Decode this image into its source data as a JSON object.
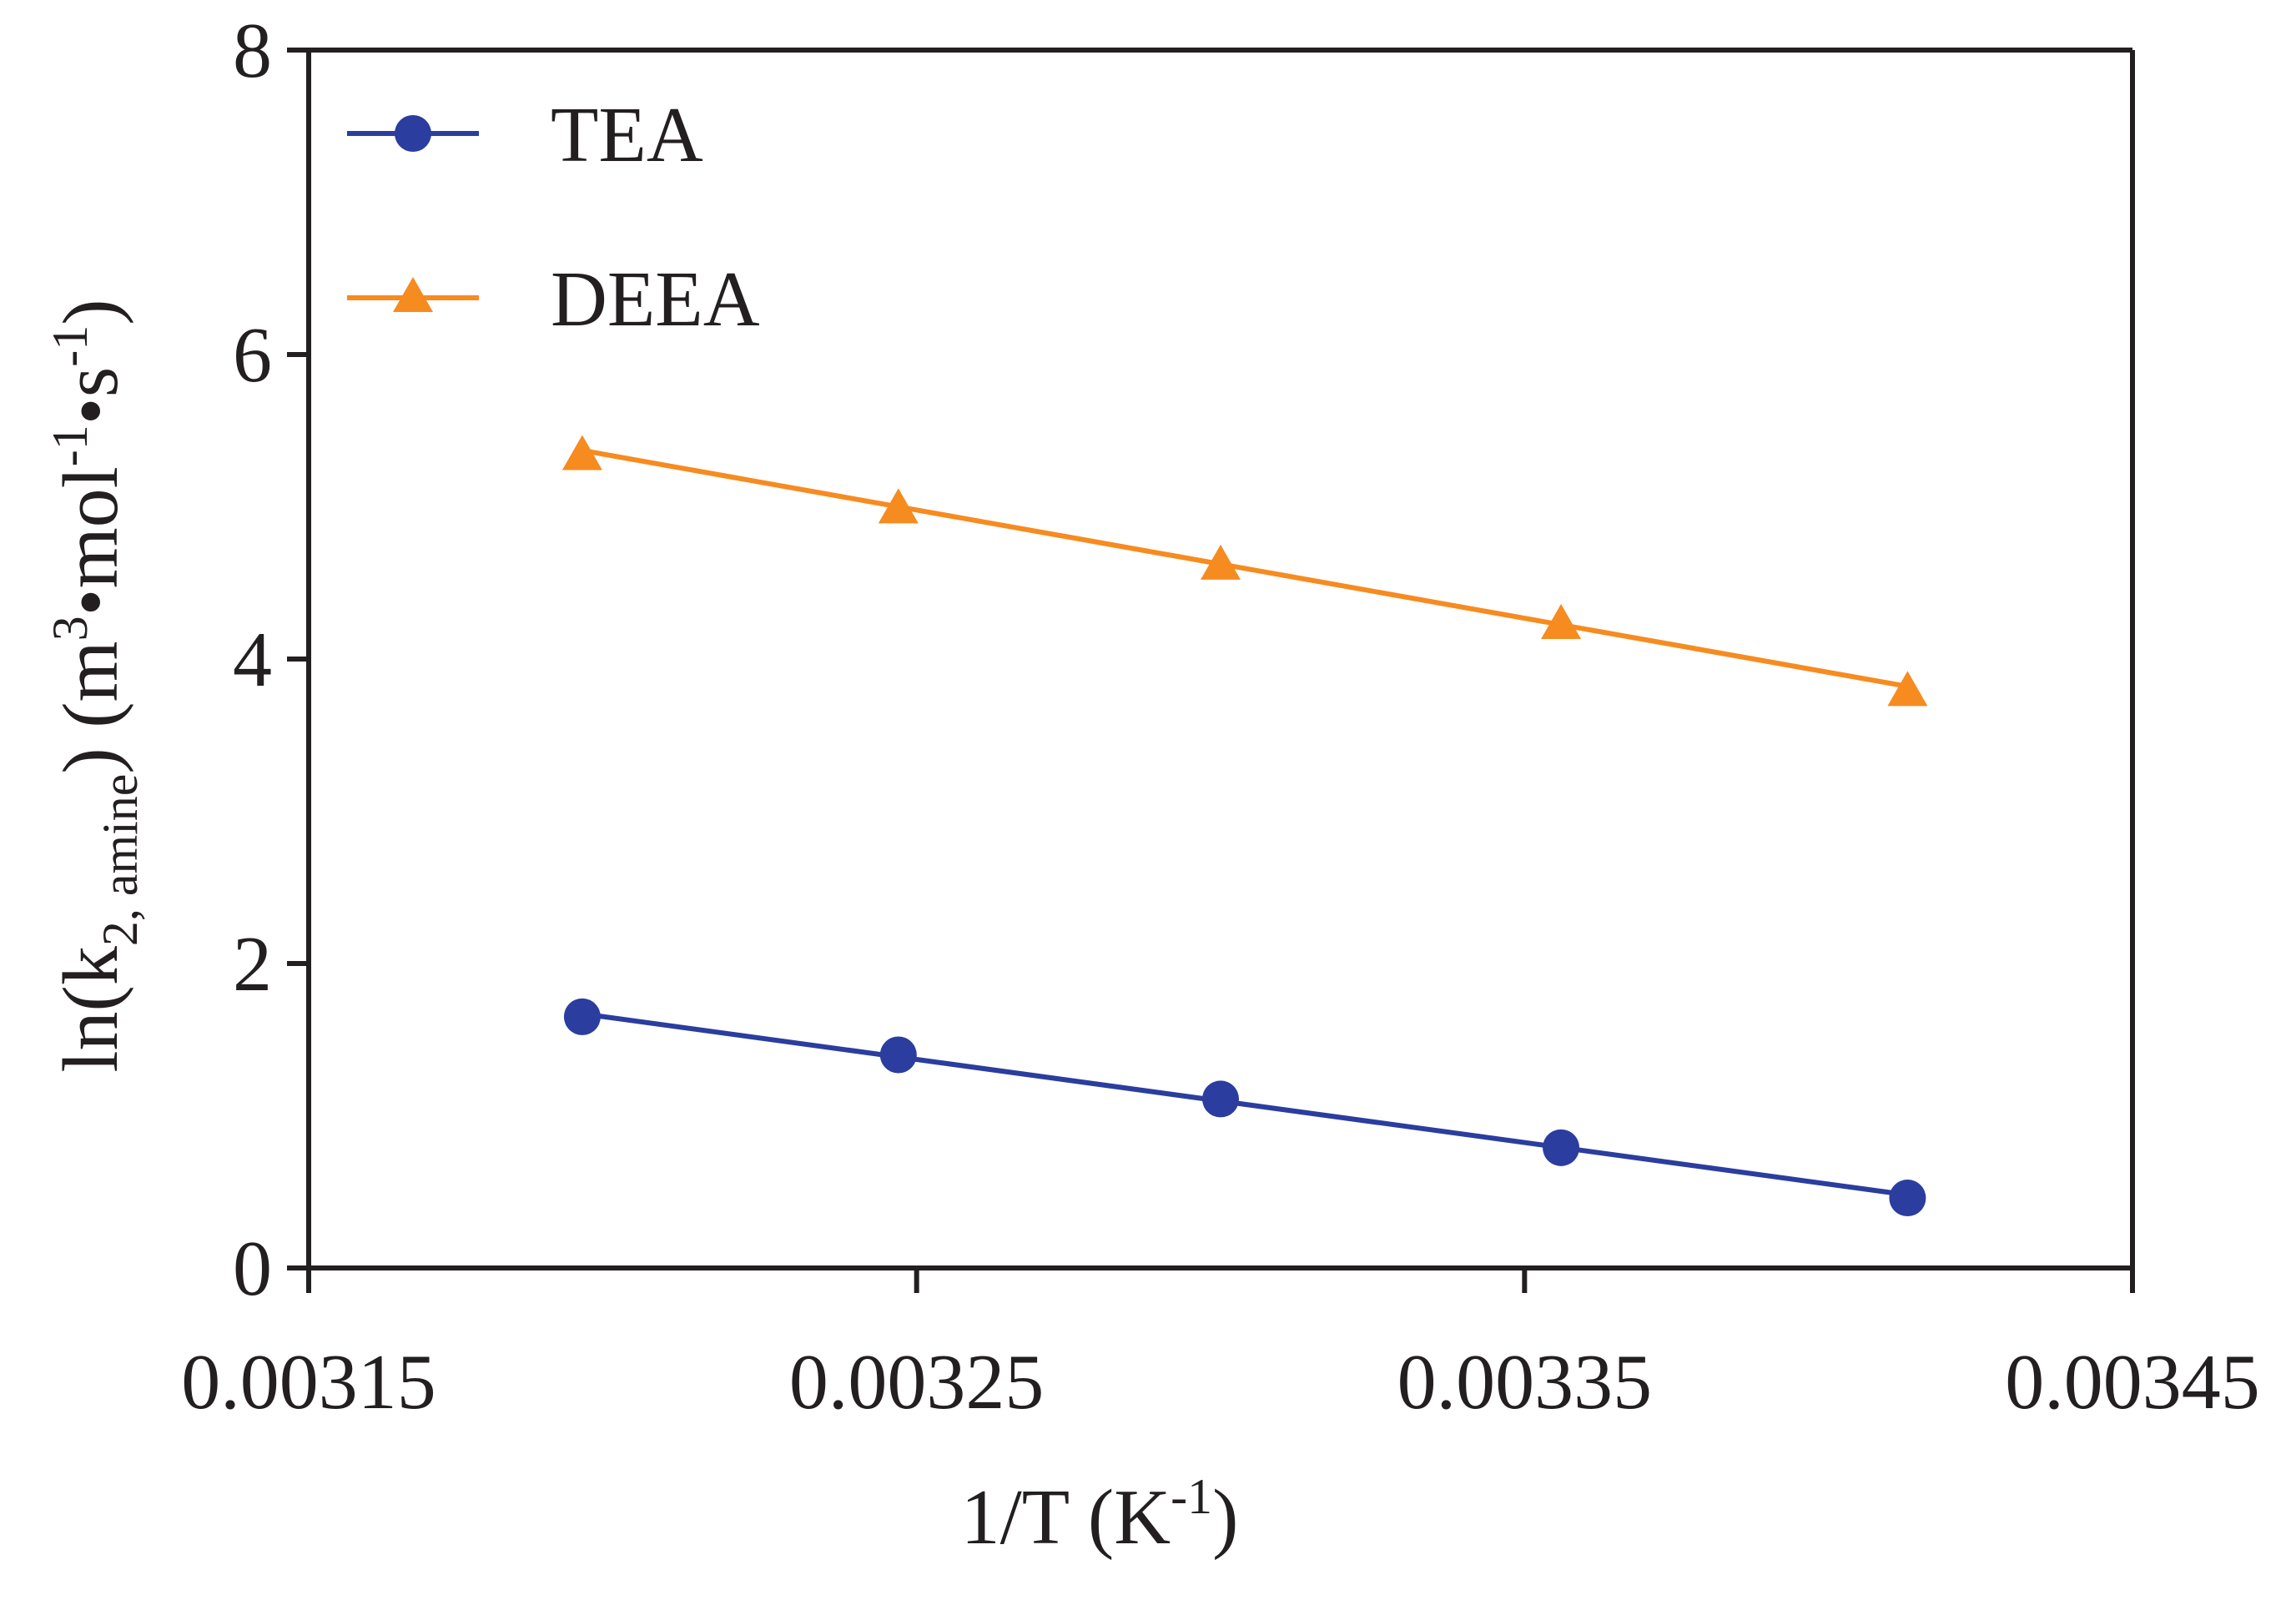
{
  "chart_data": {
    "type": "line",
    "xlabel": "1/T (K-1)",
    "xlabel_parts": {
      "main": "1/T (K",
      "sup": "-1",
      "tail": ")"
    },
    "ylabel": "ln(k2, amine) (m3•mol-1•s-1)",
    "ylabel_parts": {
      "prefix": "ln(k",
      "sub": "2, amine",
      "mid": ") (m",
      "sup1": "3",
      "mid2": "•mol",
      "sup2": "-1",
      "mid3": "•s",
      "sup3": "-1",
      "tail": ")"
    },
    "xlim": [
      0.00315,
      0.00345
    ],
    "ylim": [
      0,
      8
    ],
    "xticks": [
      0.00315,
      0.00325,
      0.00335,
      0.00345
    ],
    "xtick_labels": [
      "0.00315",
      "0.00325",
      "0.00335",
      "0.00345"
    ],
    "yticks": [
      0,
      2,
      4,
      6,
      8
    ],
    "ytick_labels": [
      "0",
      "2",
      "4",
      "6",
      "8"
    ],
    "legend_position": "top-left",
    "series": [
      {
        "name": "TEA",
        "color": "#2b3d9e",
        "marker": "circle",
        "x": [
          0.003195,
          0.003247,
          0.0033,
          0.003356,
          0.003413
        ],
        "y": [
          1.65,
          1.4,
          1.11,
          0.79,
          0.46
        ],
        "fit": [
          1.67,
          0.48
        ]
      },
      {
        "name": "DEEA",
        "color": "#f68b20",
        "marker": "triangle",
        "x": [
          0.003195,
          0.003247,
          0.0033,
          0.003356,
          0.003413
        ],
        "y": [
          5.34,
          4.99,
          4.62,
          4.23,
          3.79
        ],
        "fit": [
          5.37,
          3.82
        ]
      }
    ]
  }
}
